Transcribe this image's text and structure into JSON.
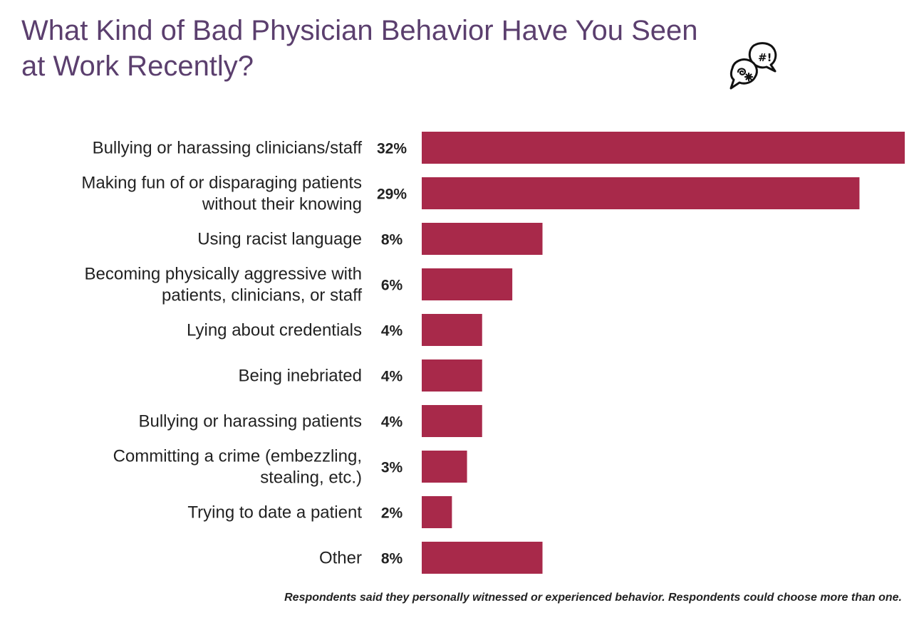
{
  "title": {
    "line1": "What Kind of Bad Physician Behavior Have You Seen",
    "line2": "at Work Recently?"
  },
  "icon": "speech-bubbles-icon",
  "footnote": "Respondents said they personally witnessed or experienced behavior. Respondents could choose more than one.",
  "chart_data": {
    "type": "bar",
    "orientation": "horizontal",
    "title": "What Kind of Bad Physician Behavior Have You Seen at Work Recently?",
    "xlabel": "",
    "ylabel": "",
    "unit": "%",
    "xlim": [
      0,
      32
    ],
    "grid": false,
    "legend": "none",
    "bar_color": "#a8294a",
    "categories": [
      [
        "Bullying or harassing clinicians/staff"
      ],
      [
        "Making fun of or disparaging patients",
        "without their knowing"
      ],
      [
        "Using racist language"
      ],
      [
        "Becoming physically aggressive with",
        "patients, clinicians, or staff"
      ],
      [
        "Lying about credentials"
      ],
      [
        "Being inebriated"
      ],
      [
        "Bullying or harassing patients"
      ],
      [
        "Committing a crime (embezzling,",
        "stealing, etc.)"
      ],
      [
        "Trying to date a patient"
      ],
      [
        "Other"
      ]
    ],
    "values": [
      32,
      29,
      8,
      6,
      4,
      4,
      4,
      3,
      2,
      8
    ],
    "value_labels": [
      "32%",
      "29%",
      "8%",
      "6%",
      "4%",
      "4%",
      "4%",
      "3%",
      "2%",
      "8%"
    ]
  }
}
